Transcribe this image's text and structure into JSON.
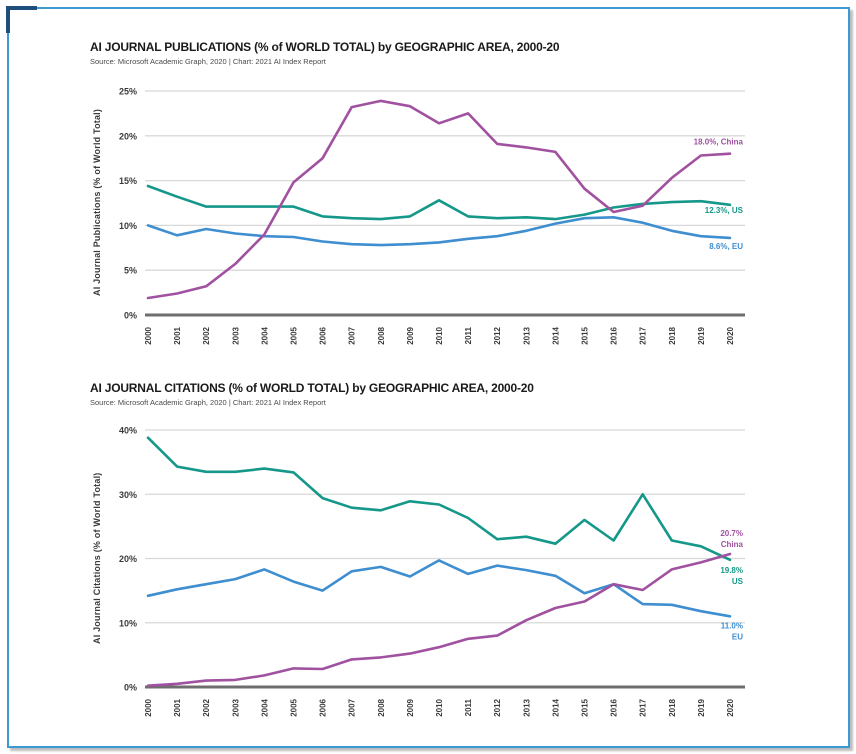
{
  "page": {
    "background": "#ffffff",
    "frame_color": "#3c99d4",
    "corner_mark_color": "#1f4e7a"
  },
  "colors": {
    "china": "#a0519f",
    "us": "#159889",
    "eu": "#3e8ed0",
    "grid": "#d8d8d8",
    "axis_line": "#6e6e6e",
    "tick_text": "#3a3a3a",
    "title_text": "#1a1a1a",
    "source_text": "#4a4a4a"
  },
  "chart_data": [
    {
      "type": "line",
      "title": "AI JOURNAL PUBLICATIONS (% of WORLD TOTAL) by GEOGRAPHIC AREA, 2000-20",
      "source": "Source: Microsoft Academic Graph, 2020 | Chart: 2021 AI Index Report",
      "ylabel": "AI Journal Publications (% of World Total)",
      "xlabel": "",
      "x": [
        2000,
        2001,
        2002,
        2003,
        2004,
        2005,
        2006,
        2007,
        2008,
        2009,
        2010,
        2011,
        2012,
        2013,
        2014,
        2015,
        2016,
        2017,
        2018,
        2019,
        2020
      ],
      "ylim": [
        0,
        25
      ],
      "yticks": [
        0,
        5,
        10,
        15,
        20,
        25
      ],
      "ytick_suffix": "%",
      "grid": true,
      "legend_position": "end-of-line-labels",
      "series": [
        {
          "name": "US",
          "color_key": "us",
          "label_lines": [
            "12.3%, US"
          ],
          "label_dy": 8,
          "values": [
            14.4,
            13.2,
            12.1,
            12.1,
            12.1,
            12.1,
            11.0,
            10.8,
            10.7,
            11.0,
            12.8,
            11.0,
            10.8,
            10.9,
            10.7,
            11.2,
            12.0,
            12.4,
            12.6,
            12.7,
            12.3
          ]
        },
        {
          "name": "EU",
          "color_key": "eu",
          "label_lines": [
            "8.6%, EU"
          ],
          "label_dy": 11,
          "values": [
            10.0,
            8.9,
            9.6,
            9.1,
            8.8,
            8.7,
            8.2,
            7.9,
            7.8,
            7.9,
            8.1,
            8.5,
            8.8,
            9.4,
            10.2,
            10.8,
            10.9,
            10.3,
            9.4,
            8.8,
            8.6
          ]
        },
        {
          "name": "China",
          "color_key": "china",
          "label_lines": [
            "18.0%, China"
          ],
          "label_dy": -9,
          "values": [
            1.9,
            2.4,
            3.2,
            5.7,
            9.0,
            14.8,
            17.5,
            23.2,
            23.9,
            23.3,
            21.4,
            22.5,
            19.1,
            18.7,
            18.2,
            14.1,
            11.5,
            12.2,
            15.3,
            17.8,
            18.0
          ]
        }
      ]
    },
    {
      "type": "line",
      "title": "AI JOURNAL CITATIONS (% of WORLD TOTAL) by GEOGRAPHIC AREA, 2000-20",
      "source": "Source: Microsoft Academic Graph, 2020 | Chart: 2021 AI Index Report",
      "ylabel": "AI Journal Citations (% of World Total)",
      "xlabel": "",
      "x": [
        2000,
        2001,
        2002,
        2003,
        2004,
        2005,
        2006,
        2007,
        2008,
        2009,
        2010,
        2011,
        2012,
        2013,
        2014,
        2015,
        2016,
        2017,
        2018,
        2019,
        2020
      ],
      "ylim": [
        0,
        40
      ],
      "yticks": [
        0,
        10,
        20,
        30,
        40
      ],
      "ytick_suffix": "%",
      "grid": true,
      "legend_position": "end-of-line-labels",
      "series": [
        {
          "name": "US",
          "color_key": "us",
          "label_lines": [
            "19.8%",
            "US"
          ],
          "label_dy": 13,
          "values": [
            38.8,
            34.3,
            33.5,
            33.5,
            34.0,
            33.4,
            29.4,
            27.9,
            27.5,
            28.9,
            28.4,
            26.3,
            23.0,
            23.4,
            22.3,
            26.0,
            22.8,
            30.0,
            22.8,
            21.9,
            19.8
          ]
        },
        {
          "name": "EU",
          "color_key": "eu",
          "label_lines": [
            "11.0%",
            "EU"
          ],
          "label_dy": 12,
          "values": [
            14.2,
            15.2,
            16.0,
            16.8,
            18.3,
            16.4,
            15.0,
            18.0,
            18.7,
            17.2,
            19.7,
            17.6,
            18.9,
            18.2,
            17.3,
            14.6,
            16.0,
            12.9,
            12.8,
            11.8,
            11.0
          ]
        },
        {
          "name": "China",
          "color_key": "china",
          "label_lines": [
            "20.7%",
            "China"
          ],
          "label_dy": -18,
          "values": [
            0.2,
            0.5,
            1.0,
            1.1,
            1.8,
            2.9,
            2.8,
            4.3,
            4.6,
            5.2,
            6.2,
            7.5,
            8.0,
            10.4,
            12.3,
            13.3,
            16.0,
            15.1,
            18.3,
            19.4,
            20.7
          ]
        }
      ]
    }
  ]
}
